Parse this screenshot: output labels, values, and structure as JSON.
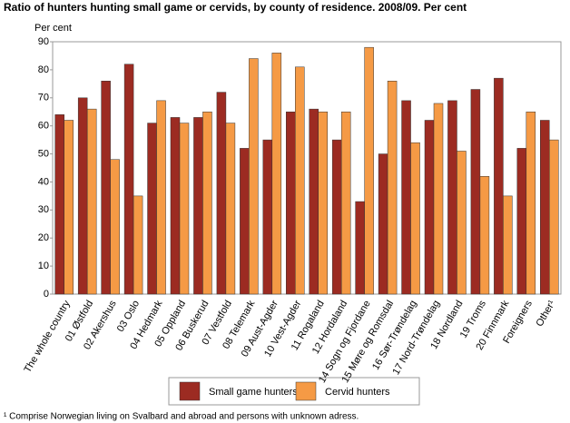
{
  "chart_data": {
    "type": "bar",
    "title": "Ratio of hunters hunting small game or cervids, by county of residence. 2008/09. Per cent",
    "y_label": "Per cent",
    "footnote": "¹ Comprise Norwegian living on Svalbard and abroad and persons with unknown adress.",
    "categories": [
      "The whole country",
      "01 Østfold",
      "02 Akershus",
      "03 Oslo",
      "04 Hedmark",
      "05 Oppland",
      "06 Buskerud",
      "07 Vestfold",
      "08 Telemark",
      "09 Aust-Agder",
      "10 Vest-Agder",
      "11 Rogaland",
      "12 Hordaland",
      "14 Sogn og Fjordane",
      "15 Møre og Romsdal",
      "16 Sør-Trøndelag",
      "17 Nord-Trøndelag",
      "18 Nordland",
      "19 Troms",
      "20 Finnmark",
      "Foreigners",
      "Other¹"
    ],
    "series": [
      {
        "name": "Small game hunters",
        "color": "#9c2b22",
        "values": [
          64,
          70,
          76,
          82,
          61,
          63,
          63,
          72,
          52,
          55,
          65,
          66,
          55,
          33,
          50,
          69,
          62,
          69,
          73,
          77,
          52,
          62
        ]
      },
      {
        "name": "Cervid hunters",
        "color": "#f59a45",
        "values": [
          62,
          66,
          48,
          35,
          69,
          61,
          65,
          61,
          84,
          86,
          81,
          65,
          65,
          88,
          76,
          54,
          68,
          51,
          42,
          35,
          65,
          55
        ]
      }
    ],
    "ylim": [
      0,
      90
    ],
    "yticks": [
      0,
      10,
      20,
      30,
      40,
      50,
      60,
      70,
      80,
      90
    ],
    "grid": false
  }
}
